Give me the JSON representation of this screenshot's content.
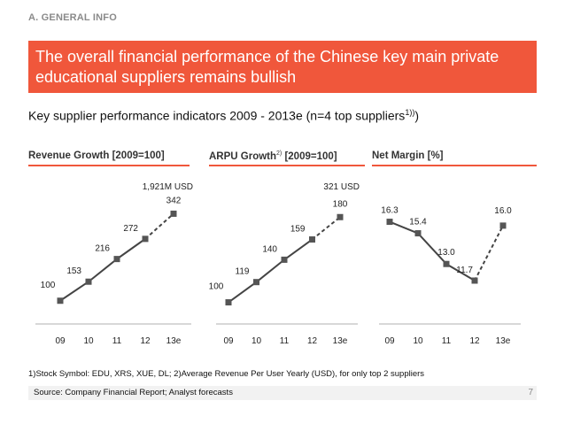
{
  "header": {
    "section_label": "A. GENERAL INFO",
    "title": "The overall financial performance of the Chinese key main private educational suppliers remains bullish",
    "subtitle": "Key supplier performance indicators 2009 - 2013e (n=4 top suppliers",
    "subtitle_sup": "1))",
    "subtitle_end": ")"
  },
  "colors": {
    "accent": "#f0573b",
    "marker": "#555555",
    "line": "#444444",
    "axis": "#b0b0b0"
  },
  "chart_data": [
    {
      "type": "line",
      "title": "Revenue Growth [2009=100]",
      "title_sup": "",
      "title_rest": "",
      "annotation": "1,921M USD",
      "categories": [
        "09",
        "10",
        "11",
        "12",
        "13e"
      ],
      "values": [
        100,
        153,
        216,
        272,
        342
      ],
      "value_labels": [
        "100",
        "153",
        "216",
        "272",
        "342"
      ],
      "forecast_from_index": 3,
      "ylim": [
        60,
        380
      ]
    },
    {
      "type": "line",
      "title": "ARPU Growth",
      "title_sup": "2)",
      "title_rest": " [2009=100]",
      "annotation": "321 USD",
      "categories": [
        "09",
        "10",
        "11",
        "12",
        "13e"
      ],
      "values": [
        100,
        119,
        140,
        159,
        180
      ],
      "value_labels": [
        "100",
        "119",
        "140",
        "159",
        "180"
      ],
      "forecast_from_index": 3,
      "ylim": [
        88,
        196
      ]
    },
    {
      "type": "line",
      "title": "Net Margin [%]",
      "title_sup": "",
      "title_rest": "",
      "annotation": "",
      "categories": [
        "09",
        "10",
        "11",
        "12",
        "13e"
      ],
      "values": [
        16.3,
        15.4,
        13.0,
        11.7,
        16.0
      ],
      "value_labels": [
        "16.3",
        "15.4",
        "13.0",
        "11.7",
        "16.0"
      ],
      "forecast_from_index": 3,
      "ylim": [
        9,
        18
      ]
    }
  ],
  "footer": {
    "footnote": "1)Stock Symbol: EDU, XRS, XUE, DL;   2)Average Revenue Per User Yearly (USD), for only top 2 suppliers",
    "source": "Source: Company Financial Report; Analyst forecasts",
    "page_number": "7"
  }
}
